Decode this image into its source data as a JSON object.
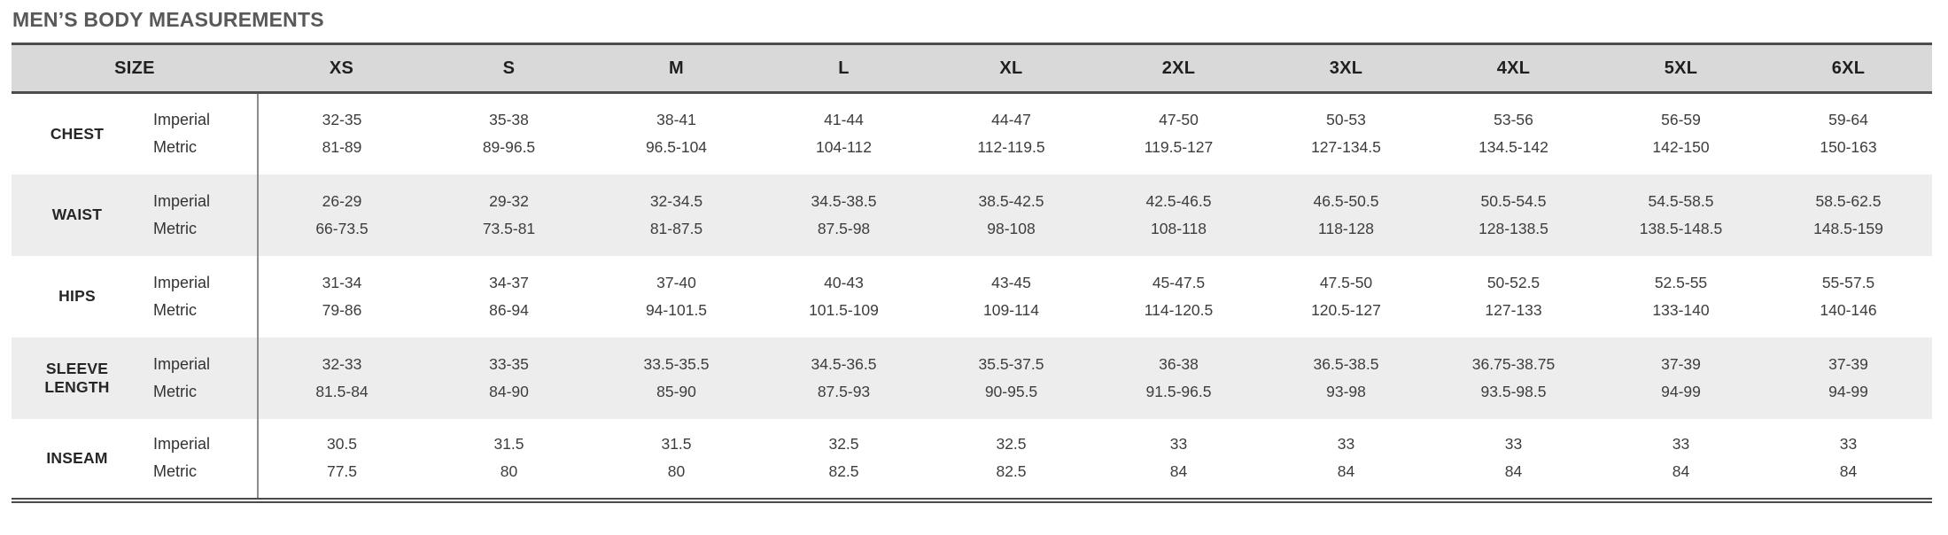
{
  "title": "MEN’S BODY MEASUREMENTS",
  "colors": {
    "title_text": "#595959",
    "header_background": "#d9d9d9",
    "header_text": "#1f1f1f",
    "stripe_row_background": "#ededed",
    "dark_border": "#4d4d4d",
    "column_divider": "#8c8c8c",
    "cell_text": "#3d3d3d",
    "page_background": "#ffffff"
  },
  "chart_data": {
    "type": "table",
    "title": "MEN’S BODY MEASUREMENTS",
    "size_header_label": "SIZE",
    "columns": [
      "XS",
      "S",
      "M",
      "L",
      "XL",
      "2XL",
      "3XL",
      "4XL",
      "5XL",
      "6XL"
    ],
    "unit_row_labels": [
      "Imperial",
      "Metric"
    ],
    "rows": [
      {
        "label": "CHEST",
        "imperial": [
          "32-35",
          "35-38",
          "38-41",
          "41-44",
          "44-47",
          "47-50",
          "50-53",
          "53-56",
          "56-59",
          "59-64"
        ],
        "metric": [
          "81-89",
          "89-96.5",
          "96.5-104",
          "104-112",
          "112-119.5",
          "119.5-127",
          "127-134.5",
          "134.5-142",
          "142-150",
          "150-163"
        ]
      },
      {
        "label": "WAIST",
        "imperial": [
          "26-29",
          "29-32",
          "32-34.5",
          "34.5-38.5",
          "38.5-42.5",
          "42.5-46.5",
          "46.5-50.5",
          "50.5-54.5",
          "54.5-58.5",
          "58.5-62.5"
        ],
        "metric": [
          "66-73.5",
          "73.5-81",
          "81-87.5",
          "87.5-98",
          "98-108",
          "108-118",
          "118-128",
          "128-138.5",
          "138.5-148.5",
          "148.5-159"
        ]
      },
      {
        "label": "HIPS",
        "imperial": [
          "31-34",
          "34-37",
          "37-40",
          "40-43",
          "43-45",
          "45-47.5",
          "47.5-50",
          "50-52.5",
          "52.5-55",
          "55-57.5"
        ],
        "metric": [
          "79-86",
          "86-94",
          "94-101.5",
          "101.5-109",
          "109-114",
          "114-120.5",
          "120.5-127",
          "127-133",
          "133-140",
          "140-146"
        ]
      },
      {
        "label": "SLEEVE LENGTH",
        "imperial": [
          "32-33",
          "33-35",
          "33.5-35.5",
          "34.5-36.5",
          "35.5-37.5",
          "36-38",
          "36.5-38.5",
          "36.75-38.75",
          "37-39",
          "37-39"
        ],
        "metric": [
          "81.5-84",
          "84-90",
          "85-90",
          "87.5-93",
          "90-95.5",
          "91.5-96.5",
          "93-98",
          "93.5-98.5",
          "94-99",
          "94-99"
        ]
      },
      {
        "label": "INSEAM",
        "imperial": [
          "30.5",
          "31.5",
          "31.5",
          "32.5",
          "32.5",
          "33",
          "33",
          "33",
          "33",
          "33"
        ],
        "metric": [
          "77.5",
          "80",
          "80",
          "82.5",
          "82.5",
          "84",
          "84",
          "84",
          "84",
          "84"
        ]
      }
    ]
  }
}
